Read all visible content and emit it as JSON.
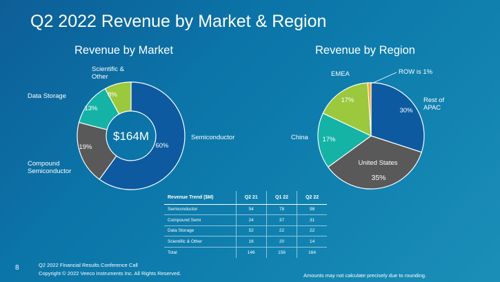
{
  "slide": {
    "title": "Q2 2022 Revenue by Market & Region",
    "page_number": "8",
    "footer_line1": "Q2 2022 Financial Results Conference Call",
    "footer_line2": "Copyright © 2022 Veeco Instruments Inc. All Rights Reserved.",
    "footnote": "Amounts may not calculate precisely due to rounding."
  },
  "colors": {
    "navy": "#0d5aa0",
    "gray": "#595959",
    "teal": "#14b3a6",
    "lime": "#9bc83c",
    "orange": "#f5a623"
  },
  "chart_data": [
    {
      "type": "pie",
      "variant": "donut",
      "title": "Revenue by Market",
      "center_label": "$164M",
      "slices": [
        {
          "label": "Semiconductor",
          "value": 60,
          "value_label": "60%",
          "color": "#0d5aa0"
        },
        {
          "label_lines": [
            "Compound",
            "Semiconductor"
          ],
          "value": 19,
          "value_label": "19%",
          "color": "#595959"
        },
        {
          "label": "Data Storage",
          "value": 13,
          "value_label": "13%",
          "color": "#14b3a6"
        },
        {
          "label_lines": [
            "Scientific &",
            "Other"
          ],
          "value": 8,
          "value_label": "8%",
          "color": "#9bc83c"
        }
      ]
    },
    {
      "type": "pie",
      "title": "Revenue by Region",
      "slices": [
        {
          "label_lines": [
            "Rest of",
            "APAC"
          ],
          "value": 30,
          "value_label": "30%",
          "color": "#0d5aa0"
        },
        {
          "label": "United States",
          "value": 35,
          "value_label": "35%",
          "color": "#595959"
        },
        {
          "label": "China",
          "value": 17,
          "value_label": "17%",
          "color": "#14b3a6"
        },
        {
          "label": "EMEA",
          "value": 17,
          "value_label": "17%",
          "color": "#9bc83c"
        },
        {
          "label": "ROW is 1%",
          "value": 1,
          "value_label": "",
          "color": "#f5a623"
        }
      ]
    },
    {
      "type": "table",
      "title": "Revenue Trend ($M)",
      "columns": [
        "Revenue Trend ($M)",
        "Q2 21",
        "Q1 22",
        "Q2 22"
      ],
      "rows": [
        [
          "Semiconductor",
          "54",
          "78",
          "98"
        ],
        [
          "Compound Semi",
          "24",
          "37",
          "31"
        ],
        [
          "Data Storage",
          "52",
          "22",
          "22"
        ],
        [
          "Scientific & Other",
          "16",
          "20",
          "14"
        ],
        [
          "Total",
          "146",
          "156",
          "164"
        ]
      ]
    }
  ]
}
